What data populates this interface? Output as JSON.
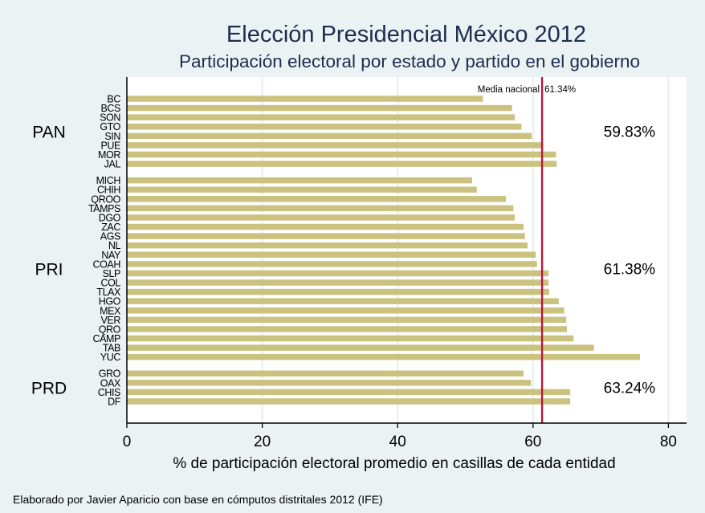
{
  "chart_data": {
    "type": "bar",
    "orientation": "horizontal",
    "title": "Elección Presidencial México 2012",
    "subtitle": "Participación electoral por estado y partido en el gobierno",
    "xlabel": "% de participación electoral promedio en casillas de cada entidad",
    "xlim": [
      0,
      83
    ],
    "xticks": [
      0,
      20,
      40,
      60,
      80
    ],
    "xtick_labels": [
      "0",
      "20",
      "40",
      "60",
      "80"
    ],
    "grid": true,
    "reference_line": {
      "value": 61.34,
      "label": "Media nacional",
      "value_label": "61.34%"
    },
    "groups": [
      {
        "name": "PAN",
        "mean_label": "59.83%",
        "categories": [
          "BC",
          "BCS",
          "SON",
          "GTO",
          "SIN",
          "PUE",
          "MOR",
          "JAL"
        ],
        "values": [
          52.6,
          56.9,
          57.3,
          58.3,
          59.8,
          61.5,
          63.4,
          63.5
        ]
      },
      {
        "name": "PRI",
        "mean_label": "61.38%",
        "categories": [
          "MICH",
          "CHIH",
          "QROO",
          "TAMPS",
          "DGO",
          "ZAC",
          "AGS",
          "NL",
          "NAY",
          "COAH",
          "SLP",
          "COL",
          "TLAX",
          "HGO",
          "MEX",
          "VER",
          "QRO",
          "CAMP",
          "TAB",
          "YUC"
        ],
        "values": [
          51.0,
          51.7,
          56.0,
          57.1,
          57.3,
          58.6,
          58.8,
          59.2,
          60.4,
          60.6,
          62.3,
          62.3,
          62.4,
          63.8,
          64.6,
          64.9,
          65.0,
          66.0,
          69.0,
          75.8
        ]
      },
      {
        "name": "PRD",
        "mean_label": "63.24%",
        "categories": [
          "GRO",
          "OAX",
          "CHIS",
          "DF"
        ],
        "values": [
          58.6,
          59.7,
          65.5,
          65.5
        ]
      }
    ],
    "colors": {
      "bar": "#cbc280",
      "reference_line": "#c0143c",
      "title": "#1e2d4e",
      "background": "#eaf2f3",
      "plot_background": "#ffffff",
      "grid": "#e6eef0"
    }
  },
  "note": "Elaborado por Javier Aparicio con base en cómputos distritales 2012 (IFE)"
}
